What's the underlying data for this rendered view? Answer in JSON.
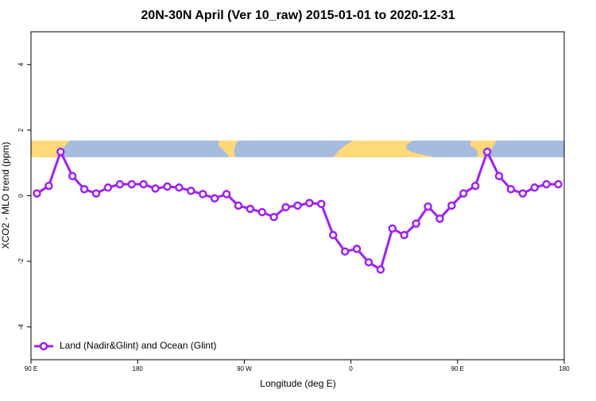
{
  "chart_data": {
    "type": "line",
    "title": "20N-30N April (Ver 10_raw)   2015-01-01 to 2020-12-31",
    "x_label": "Longitude (deg E)",
    "y_label": "XCO2 - MLO trend (ppm)",
    "x": [
      95,
      105,
      115,
      125,
      135,
      145,
      155,
      165,
      175,
      185,
      195,
      205,
      215,
      225,
      235,
      245,
      255,
      265,
      275,
      285,
      295,
      305,
      315,
      325,
      335,
      345,
      355,
      365,
      375,
      385,
      395,
      405,
      415,
      425,
      435,
      445,
      455,
      465,
      475,
      485,
      495,
      505,
      515,
      525,
      535
    ],
    "series": [
      {
        "name": "Land (Nadir&Glint) and Ocean (Glint)",
        "color": "#a020f0",
        "values": [
          0.07,
          0.3,
          1.34,
          0.6,
          0.2,
          0.07,
          0.25,
          0.35,
          0.35,
          0.35,
          0.22,
          0.28,
          0.25,
          0.15,
          0.05,
          -0.08,
          0.05,
          -0.3,
          -0.4,
          -0.5,
          -0.65,
          -0.35,
          -0.3,
          -0.22,
          -0.25,
          -1.2,
          -1.7,
          -1.62,
          -2.03,
          -2.25,
          -1.0,
          -1.2,
          -0.85,
          -0.33,
          -0.7,
          -0.3,
          0.07,
          0.3,
          1.34,
          0.6,
          0.2,
          0.07,
          0.25,
          0.35,
          0.35
        ]
      }
    ],
    "xlim": [
      90,
      540
    ],
    "xticks": [
      {
        "value": 90,
        "label": "90 E"
      },
      180,
      {
        "value": 270,
        "label": "90 W"
      },
      {
        "value": 360,
        "label": "0"
      },
      {
        "value": 450,
        "label": "90 E"
      },
      {
        "value": 540,
        "label": "180"
      }
    ],
    "ylim": [
      -5,
      5
    ],
    "yticks": [
      -4,
      -2,
      0,
      2,
      4
    ],
    "legend": "bottom-left"
  }
}
